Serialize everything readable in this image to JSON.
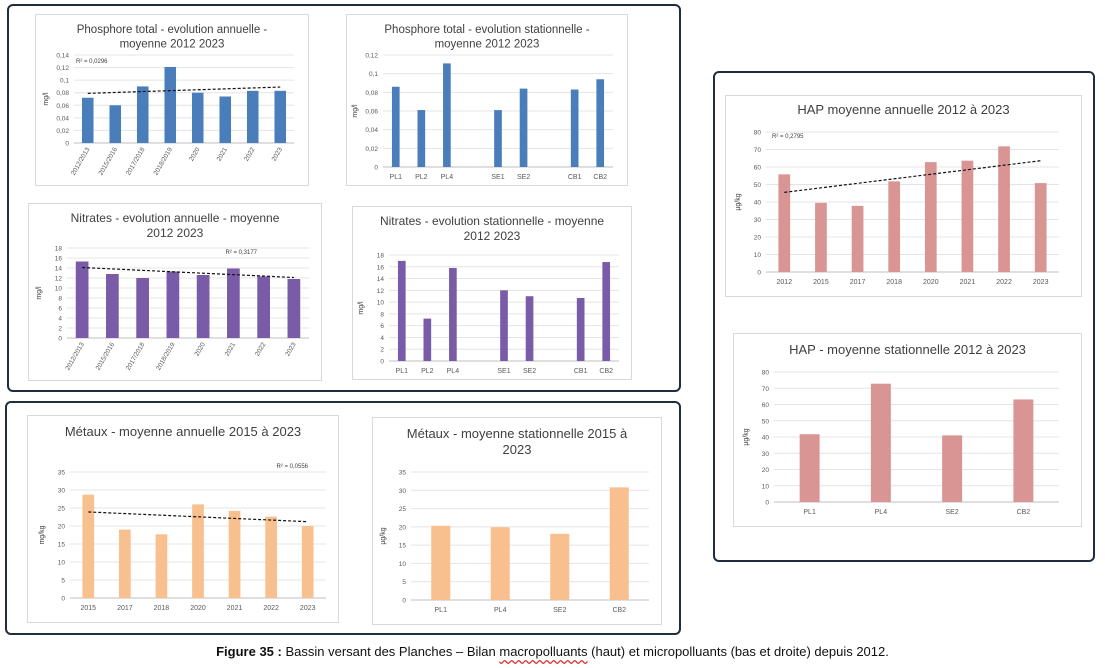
{
  "caption": {
    "label": "Figure 35 :",
    "text_before": " Bassin versant des Planches – Bilan ",
    "text_squiggle": "macropolluants",
    "text_after": " (haut) et micropolluants (bas et droite) depuis 2012."
  },
  "chart_data": [
    {
      "id": "p-annual",
      "type": "bar",
      "title": [
        "Phosphore total - evolution annuelle -",
        "moyenne 2012 2023"
      ],
      "categories": [
        "2012/2013",
        "2015/2016",
        "2017/2018",
        "2018/2019",
        "2020",
        "2021",
        "2022",
        "2023"
      ],
      "values": [
        0.072,
        0.06,
        0.09,
        0.121,
        0.08,
        0.074,
        0.083,
        0.083
      ],
      "ylabel": "mg/l",
      "ylim": [
        0,
        0.14
      ],
      "yticks": [
        "0",
        "0,02",
        "0,04",
        "0,06",
        "0,08",
        "0,1",
        "0,12",
        "0,14"
      ],
      "color": "#4a7ebb",
      "trendline": true,
      "trend": [
        0.079,
        0.089
      ],
      "r2": "R² = 0,0296",
      "grid": true
    },
    {
      "id": "p-station",
      "type": "bar",
      "title": [
        "Phosphore total - evolution stationnelle -",
        "moyenne 2012 2023"
      ],
      "categories": [
        "PL1",
        "PL2",
        "PL4",
        "",
        "SE1",
        "SE2",
        "",
        "CB1",
        "CB2"
      ],
      "values": [
        0.086,
        0.061,
        0.111,
        null,
        0.061,
        0.084,
        null,
        0.083,
        0.094
      ],
      "ylabel": "mg/l",
      "ylim": [
        0,
        0.12
      ],
      "yticks": [
        "0",
        "0,02",
        "0,04",
        "0,06",
        "0,08",
        "0,1",
        "0,12"
      ],
      "color": "#4a7ebb",
      "grid": true
    },
    {
      "id": "n-annual",
      "type": "bar",
      "title": [
        "Nitrates - evolution annuelle - moyenne",
        "2012 2023"
      ],
      "categories": [
        "2012/2013",
        "2015/2016",
        "2017/2018",
        "2018/2019",
        "2020",
        "2021",
        "2022",
        "2023"
      ],
      "values": [
        15.3,
        12.8,
        12.0,
        13.3,
        12.6,
        13.9,
        12.3,
        11.8
      ],
      "ylabel": "mg/l",
      "ylim": [
        0,
        18
      ],
      "yticks": [
        "0",
        "2",
        "4",
        "6",
        "8",
        "10",
        "12",
        "14",
        "16",
        "18"
      ],
      "color": "#7a5ba7",
      "trendline": true,
      "trend": [
        14.1,
        12.1
      ],
      "r2": "R² = 0,3177",
      "grid": true
    },
    {
      "id": "n-station",
      "type": "bar",
      "title": [
        "Nitrates - evolution stationnelle - moyenne",
        "2012 2023"
      ],
      "categories": [
        "PL1",
        "PL2",
        "PL4",
        "",
        "SE1",
        "SE2",
        "",
        "CB1",
        "CB2"
      ],
      "values": [
        17.0,
        7.2,
        15.8,
        null,
        12.0,
        11.0,
        null,
        10.7,
        16.8
      ],
      "ylabel": "mg/l",
      "ylim": [
        0,
        18
      ],
      "yticks": [
        "0",
        "2",
        "4",
        "6",
        "8",
        "10",
        "12",
        "14",
        "16",
        "18"
      ],
      "color": "#7a5ba7",
      "grid": true
    },
    {
      "id": "m-annual",
      "type": "bar",
      "title": [
        "Métaux - moyenne annuelle 2015 à 2023"
      ],
      "categories": [
        "2015",
        "2017",
        "2018",
        "2020",
        "2021",
        "2022",
        "2023"
      ],
      "values": [
        28.7,
        19.0,
        17.7,
        26.0,
        24.2,
        22.6,
        20.0
      ],
      "ylabel": "mg/kg",
      "ylim": [
        0,
        35
      ],
      "yticks": [
        "0",
        "5",
        "10",
        "15",
        "20",
        "25",
        "30",
        "35"
      ],
      "color": "#f9c08f",
      "trendline": true,
      "trend": [
        23.9,
        21.2
      ],
      "r2": "R² = 0,0556",
      "grid": true
    },
    {
      "id": "m-station",
      "type": "bar",
      "title": [
        "Métaux - moyenne stationnelle 2015 à",
        "2023"
      ],
      "categories": [
        "PL1",
        "PL4",
        "SE2",
        "CB2"
      ],
      "values": [
        20.3,
        19.9,
        18.1,
        30.8
      ],
      "ylabel": "µg/kg",
      "ylim": [
        0,
        35
      ],
      "yticks": [
        "0",
        "5",
        "10",
        "15",
        "20",
        "25",
        "30",
        "35"
      ],
      "color": "#f9c08f",
      "grid": true
    },
    {
      "id": "h-annual",
      "type": "bar",
      "title": [
        "HAP  moyenne annuelle 2012 à 2023"
      ],
      "categories": [
        "2012",
        "2015",
        "2017",
        "2018",
        "2020",
        "2021",
        "2022",
        "2023"
      ],
      "values": [
        55.8,
        39.5,
        37.8,
        51.8,
        62.8,
        63.6,
        71.8,
        50.8
      ],
      "ylabel": "µg/kg",
      "ylim": [
        0,
        80
      ],
      "yticks": [
        "0",
        "10",
        "20",
        "30",
        "40",
        "50",
        "60",
        "70",
        "80"
      ],
      "color": "#d99594",
      "trendline": true,
      "trend": [
        45.5,
        63.6
      ],
      "r2": "R² = 0,2795",
      "grid": true
    },
    {
      "id": "h-station",
      "type": "bar",
      "title": [
        "HAP - moyenne stationnelle 2012 à 2023"
      ],
      "categories": [
        "PL1",
        "PL4",
        "SE2",
        "CB2"
      ],
      "values": [
        41.7,
        72.8,
        41.0,
        63.1
      ],
      "ylabel": "µg/kg",
      "ylim": [
        0,
        80
      ],
      "yticks": [
        "0",
        "10",
        "20",
        "30",
        "40",
        "50",
        "60",
        "70",
        "80"
      ],
      "color": "#d99594",
      "grid": true
    }
  ]
}
